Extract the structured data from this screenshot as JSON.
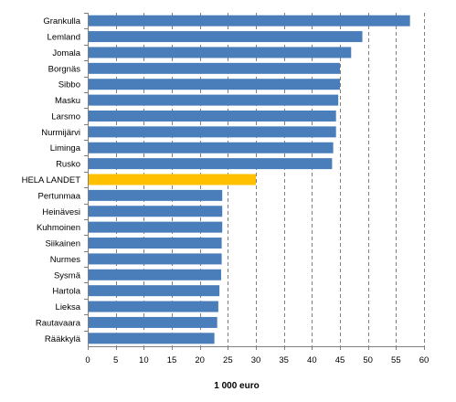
{
  "chart_data": {
    "type": "bar",
    "orientation": "horizontal",
    "categories": [
      "Grankulla",
      "Lemland",
      "Jomala",
      "Borgnäs",
      "Sibbo",
      "Masku",
      "Larsmo",
      "Nurmijärvi",
      "Liminga",
      "Rusko",
      "HELA LANDET",
      "Pertunmaa",
      "Heinävesi",
      "Kuhmoinen",
      "Siikainen",
      "Nurmes",
      "Sysmä",
      "Hartola",
      "Lieksa",
      "Rautavaara",
      "Rääkkylä"
    ],
    "values": [
      57.5,
      49.0,
      47.0,
      45.0,
      45.0,
      44.7,
      44.3,
      44.3,
      43.8,
      43.6,
      30.0,
      24.0,
      24.0,
      24.0,
      23.9,
      23.9,
      23.8,
      23.5,
      23.3,
      23.1,
      22.6
    ],
    "xlabel": "1 000 euro",
    "xlim": [
      0,
      60
    ],
    "xticks": [
      "0",
      "5",
      "10",
      "15",
      "20",
      "25",
      "30",
      "35",
      "40",
      "45",
      "50",
      "55",
      "60"
    ],
    "grid": "vertical dashed",
    "colors": {
      "bar": "#4a7ebb",
      "highlight": "#ffc000",
      "highlight_category": "HELA LANDET",
      "grid": "#808080"
    }
  }
}
